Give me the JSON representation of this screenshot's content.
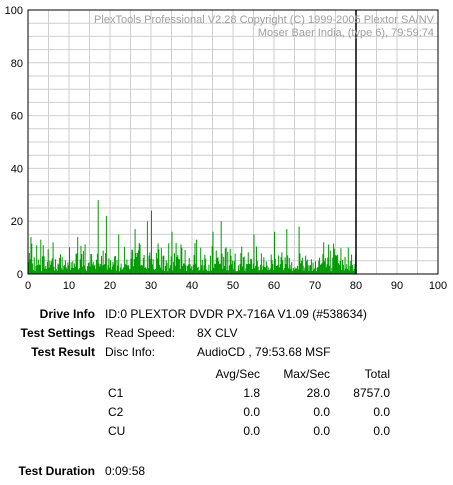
{
  "chart_data": {
    "type": "bar",
    "watermark_lines": [
      "PlexTools Professional V2.28 Copyright (C) 1999-2005 Plextor SA/NV",
      "Moser Baer India, (type 6), 79:59:74"
    ],
    "x_ticks": [
      "0",
      "10",
      "20",
      "30",
      "40",
      "50",
      "60",
      "70",
      "80",
      "90",
      "100"
    ],
    "y_ticks": [
      "0",
      "20",
      "40",
      "60",
      "80",
      "100"
    ],
    "xlim": [
      0,
      100
    ],
    "ylim": [
      0,
      100
    ],
    "grid": true,
    "end_marker_x": 80,
    "series": [
      {
        "color": "#009900",
        "peaks": [
          {
            "x": 0.5,
            "y": 14
          },
          {
            "x": 3,
            "y": 13
          },
          {
            "x": 6,
            "y": 12
          },
          {
            "x": 12,
            "y": 14
          },
          {
            "x": 17,
            "y": 28
          },
          {
            "x": 19,
            "y": 22
          },
          {
            "x": 22,
            "y": 15
          },
          {
            "x": 26,
            "y": 17
          },
          {
            "x": 29,
            "y": 20
          },
          {
            "x": 30,
            "y": 24
          },
          {
            "x": 35,
            "y": 16
          },
          {
            "x": 41,
            "y": 13
          },
          {
            "x": 45,
            "y": 16
          },
          {
            "x": 47,
            "y": 20
          },
          {
            "x": 55,
            "y": 15
          },
          {
            "x": 60,
            "y": 16
          },
          {
            "x": 63,
            "y": 17
          },
          {
            "x": 66,
            "y": 18
          },
          {
            "x": 72,
            "y": 12
          },
          {
            "x": 78,
            "y": 10
          }
        ]
      }
    ]
  },
  "info": {
    "drive_info_label": "Drive Info",
    "drive_info_value": "ID:0 PLEXTOR DVDR PX-716A V1.09 (#538634)",
    "test_settings_label": "Test Settings",
    "read_speed_label": "Read Speed:",
    "read_speed_value": "8X CLV",
    "test_result_label": "Test Result",
    "disc_info_label": "Disc Info:",
    "disc_info_value": "AudioCD , 79:53.68 MSF",
    "test_duration_label": "Test Duration",
    "test_duration_value": "0:09:58"
  },
  "results": {
    "headers": [
      "Avg/Sec",
      "Max/Sec",
      "Total"
    ],
    "rows": [
      {
        "name": "C1",
        "avg": "1.8",
        "max": "28.0",
        "total": "8757.0"
      },
      {
        "name": "C2",
        "avg": "0.0",
        "max": "0.0",
        "total": "0.0"
      },
      {
        "name": "CU",
        "avg": "0.0",
        "max": "0.0",
        "total": "0.0"
      }
    ]
  }
}
